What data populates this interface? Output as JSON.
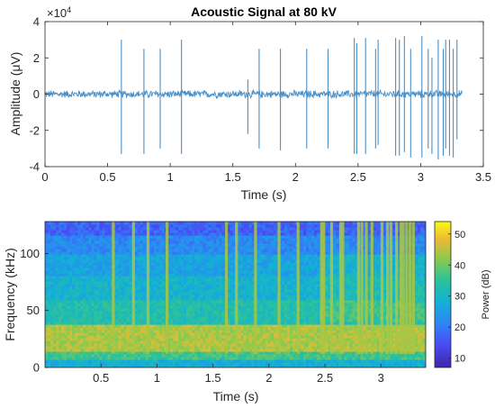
{
  "chart_data": [
    {
      "type": "line",
      "title": "Acoustic Signal  at 80 kV",
      "xlabel": "Time (s)",
      "ylabel": "Amplitude (μV)",
      "y_exponent_label": "×10",
      "y_exponent_power": "4",
      "xlim": [
        0,
        3.5
      ],
      "ylim": [
        -4,
        4
      ],
      "x_ticks": [
        "0",
        "0.5",
        "1",
        "1.5",
        "2",
        "2.5",
        "3",
        "3.5"
      ],
      "y_ticks": [
        "4",
        "2",
        "0",
        "-2",
        "-4"
      ],
      "signal_end": 3.33,
      "noise_amplitude": 0.2,
      "line_color": "#4a90c8",
      "series": [
        {
          "x": [
            0.61,
            0.79,
            0.92,
            1.09,
            1.62,
            1.71,
            1.88,
            2.09,
            2.26,
            2.47,
            2.49,
            2.56,
            2.64,
            2.66,
            2.8,
            2.83,
            2.87,
            2.92,
            3.01,
            3.06,
            3.09,
            3.14,
            3.18,
            3.2,
            3.23,
            3.26,
            3.29
          ],
          "y_pos": [
            3.0,
            2.5,
            2.5,
            3.0,
            0.8,
            2.5,
            2.5,
            2.5,
            2.5,
            3.1,
            2.8,
            3.1,
            2.5,
            3.0,
            3.1,
            3.0,
            3.2,
            2.5,
            3.2,
            2.5,
            2.0,
            3.0,
            2.5,
            3.0,
            3.0,
            2.5,
            3.0
          ],
          "y_neg": [
            -3.3,
            -3.3,
            -3.0,
            -3.3,
            -2.2,
            -3.0,
            -3.1,
            -3.0,
            -3.0,
            -3.3,
            -3.3,
            -3.3,
            -3.0,
            -2.8,
            -3.4,
            -3.4,
            -3.2,
            -3.5,
            -3.5,
            -3.0,
            -3.3,
            -3.6,
            -3.4,
            -3.0,
            -3.4,
            -3.5,
            -2.5
          ]
        }
      ]
    },
    {
      "type": "heatmap",
      "xlabel": "Time (s)",
      "ylabel": "Frequency (kHz)",
      "colorbar_label": "Power (dB)",
      "xlim": [
        0,
        3.4
      ],
      "ylim": [
        0,
        128
      ],
      "x_ticks": [
        "0.5",
        "1",
        "1.5",
        "2",
        "2.5",
        "3"
      ],
      "y_ticks": [
        "100",
        "50",
        "0"
      ],
      "clim": [
        7,
        54
      ],
      "colorbar_ticks": [
        "50",
        "40",
        "30",
        "20",
        "10"
      ],
      "broadband_bands": [
        {
          "band": [
            0,
            8
          ],
          "level": 28
        },
        {
          "band": [
            8,
            14
          ],
          "level": 36
        },
        {
          "band": [
            14,
            38
          ],
          "level": 44
        },
        {
          "band": [
            38,
            60
          ],
          "level": 33
        },
        {
          "band": [
            60,
            80
          ],
          "level": 29
        },
        {
          "band": [
            80,
            100
          ],
          "level": 26
        },
        {
          "band": [
            100,
            115
          ],
          "level": 22
        },
        {
          "band": [
            115,
            128
          ],
          "level": 17
        }
      ],
      "impulse_times": [
        0.61,
        0.79,
        0.92,
        1.09,
        1.62,
        1.71,
        1.88,
        2.09,
        2.26,
        2.47,
        2.49,
        2.56,
        2.64,
        2.66,
        2.8,
        2.83,
        2.87,
        2.92,
        3.01,
        3.06,
        3.09,
        3.14,
        3.18,
        3.2,
        3.23,
        3.26,
        3.29
      ],
      "impulse_level": 44
    }
  ]
}
